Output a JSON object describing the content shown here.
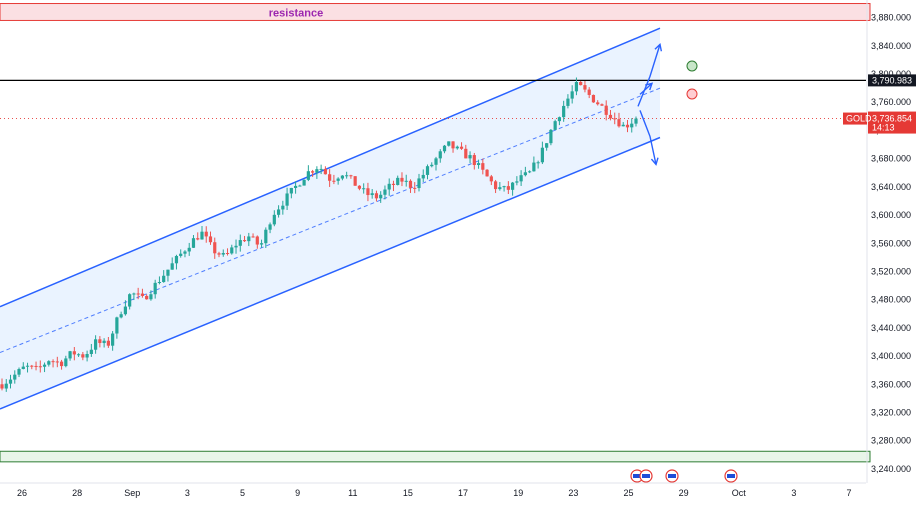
{
  "chart_data": {
    "type": "candlestick",
    "symbol": "GOLD",
    "title": "",
    "xlabel": "",
    "ylabel": "",
    "ylim": [
      3220,
      3905
    ],
    "y_ticks": [
      3880,
      3840,
      3800,
      3760,
      3720,
      3680,
      3640,
      3600,
      3560,
      3520,
      3480,
      3440,
      3400,
      3360,
      3320,
      3280,
      3240
    ],
    "x_ticks": [
      "26",
      "28",
      "Sep",
      "3",
      "5",
      "9",
      "11",
      "15",
      "17",
      "19",
      "23",
      "25",
      "29",
      "Oct",
      "3",
      "7"
    ],
    "last_price": "3,736.854",
    "countdown": "14:13",
    "horizontal_level": "3,790.983",
    "resistance_zone": {
      "label": "resistance",
      "from": 3876,
      "to": 3900
    },
    "support_zone": {
      "from": 3250,
      "to": 3265
    },
    "channel": {
      "upper": {
        "from": 3470,
        "to": 3865
      },
      "mid": {
        "from": 3405,
        "to": 3780
      },
      "lower": {
        "from": 3325,
        "to": 3710
      }
    },
    "price_path": [
      3360,
      3372,
      3385,
      3380,
      3395,
      3390,
      3405,
      3400,
      3420,
      3415,
      3460,
      3490,
      3480,
      3500,
      3520,
      3540,
      3560,
      3575,
      3550,
      3540,
      3560,
      3570,
      3555,
      3600,
      3620,
      3640,
      3660,
      3670,
      3650,
      3660,
      3645,
      3630,
      3625,
      3640,
      3650,
      3640,
      3660,
      3680,
      3700,
      3690,
      3680,
      3660,
      3640,
      3635,
      3650,
      3660,
      3690,
      3730,
      3760,
      3785,
      3770,
      3755,
      3740,
      3725,
      3737
    ],
    "colors": {
      "up": "#26a69a",
      "down": "#ef5350",
      "channel_line": "#2962ff",
      "channel_fill": "#e3efff",
      "resistance_fill": "#fbe0e3",
      "resistance_border": "#e53935",
      "support_fill": "#e8f5e9",
      "support_border": "#2e7d32",
      "level_line": "#000000",
      "price_tag": "#e53935",
      "resistance_text": "#9c27b0"
    }
  }
}
